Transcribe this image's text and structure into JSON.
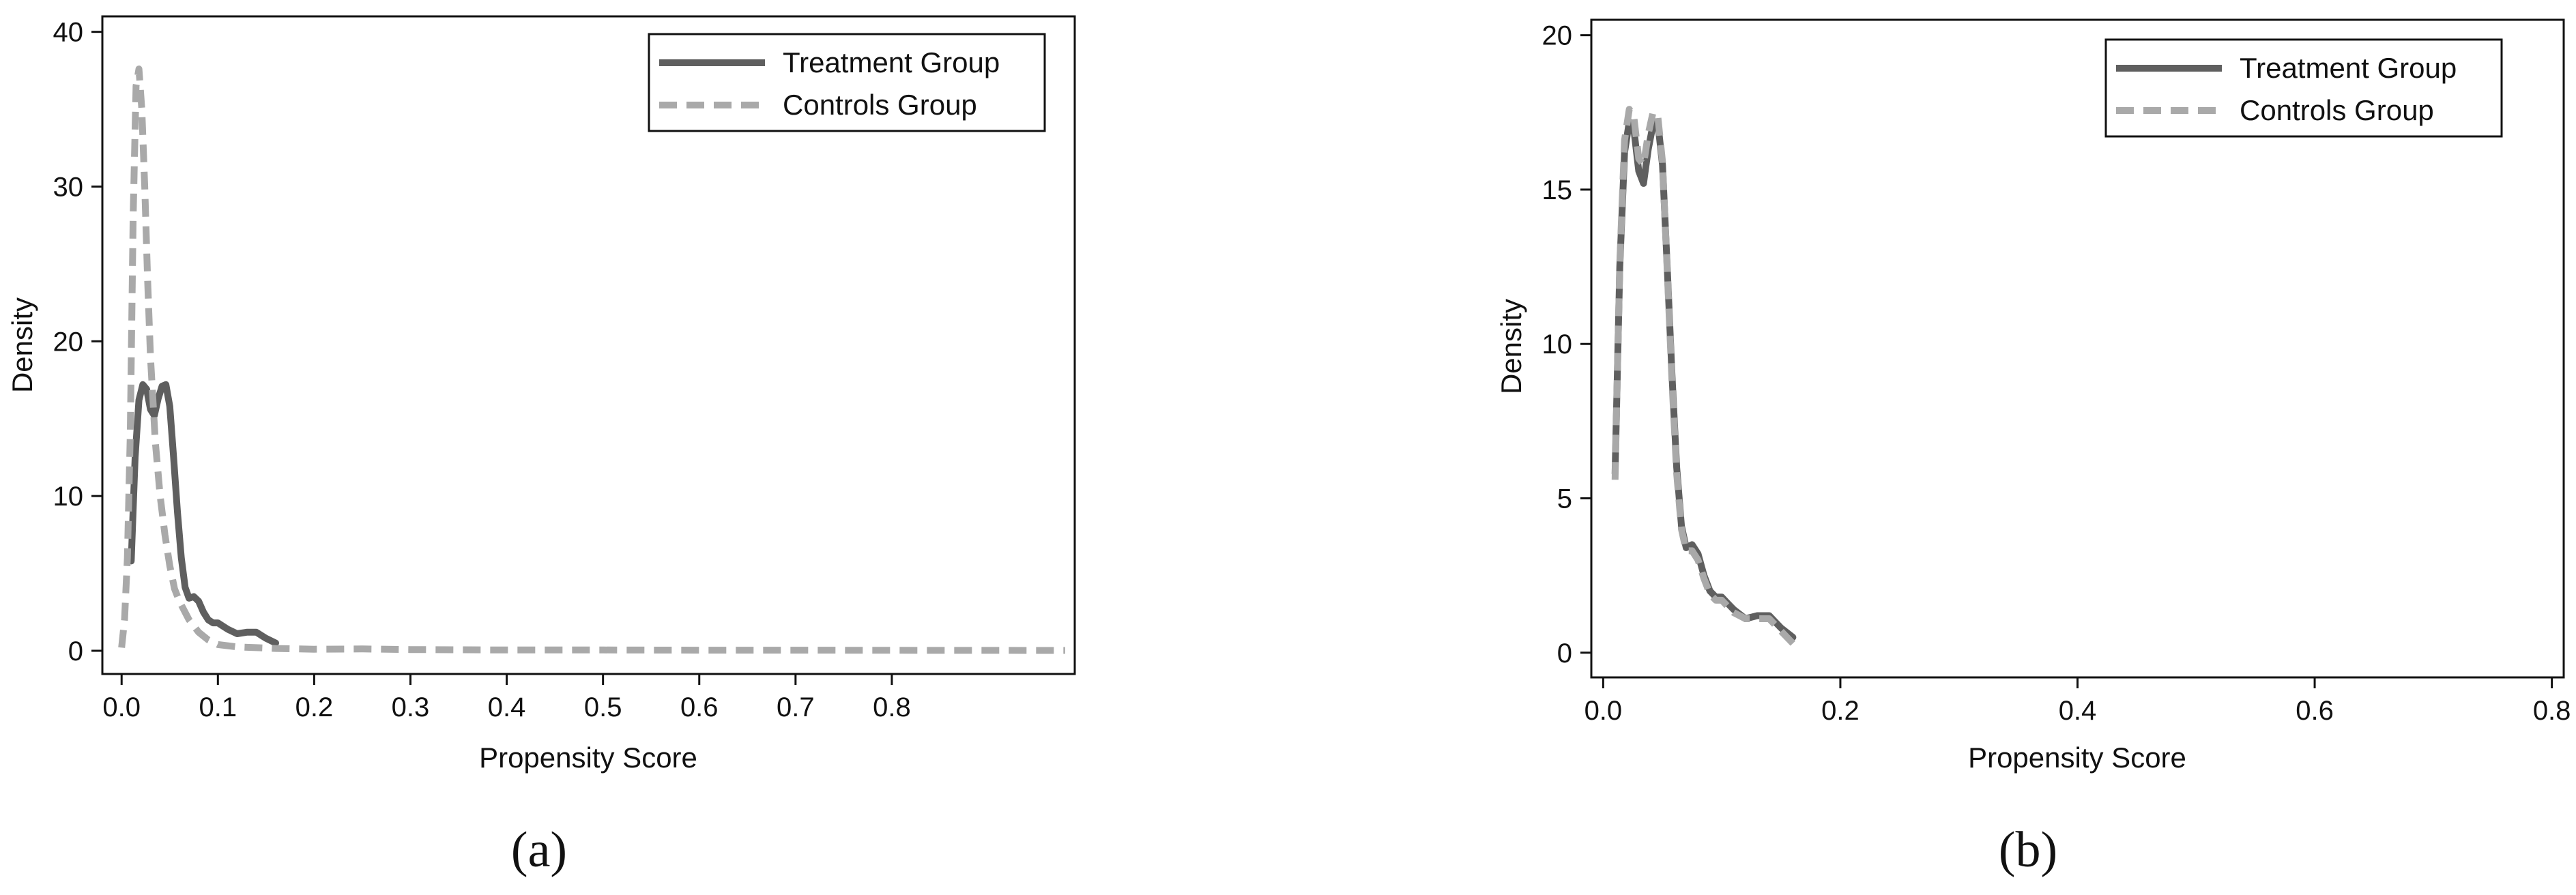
{
  "chart_data": [
    {
      "type": "line",
      "panel_label": "(a)",
      "xlabel": "Propensity Score",
      "ylabel": "Density",
      "xlim": [
        -0.02,
        0.99
      ],
      "ylim": [
        -1.5,
        41
      ],
      "xticks": [
        0.0,
        0.1,
        0.2,
        0.3,
        0.4,
        0.5,
        0.6,
        0.7,
        0.8
      ],
      "xtick_labels": [
        "0.0",
        "0.1",
        "0.2",
        "0.3",
        "0.4",
        "0.5",
        "0.6",
        "0.7",
        "0.8"
      ],
      "yticks": [
        0,
        10,
        20,
        30,
        40
      ],
      "ytick_labels": [
        "0",
        "10",
        "20",
        "30",
        "40"
      ],
      "grid": false,
      "legend_position": "top-right",
      "series": [
        {
          "name": "Treatment Group",
          "style": "solid",
          "color": "#5f5f5f",
          "x": [
            0.01,
            0.014,
            0.018,
            0.022,
            0.026,
            0.03,
            0.034,
            0.038,
            0.042,
            0.046,
            0.05,
            0.054,
            0.058,
            0.062,
            0.066,
            0.07,
            0.075,
            0.08,
            0.085,
            0.09,
            0.095,
            0.1,
            0.105,
            0.11,
            0.12,
            0.13,
            0.14,
            0.15,
            0.16
          ],
          "y": [
            5.8,
            12.5,
            16.2,
            17.2,
            16.9,
            15.6,
            15.2,
            16.3,
            17.1,
            17.2,
            15.8,
            12.5,
            9.0,
            6.0,
            4.1,
            3.4,
            3.5,
            3.2,
            2.5,
            2.0,
            1.8,
            1.8,
            1.6,
            1.4,
            1.1,
            1.2,
            1.2,
            0.8,
            0.5
          ]
        },
        {
          "name": "Controls Group",
          "style": "dashed",
          "color": "#a9a9a9",
          "x": [
            0.0,
            0.003,
            0.006,
            0.009,
            0.012,
            0.015,
            0.018,
            0.021,
            0.024,
            0.027,
            0.03,
            0.035,
            0.04,
            0.045,
            0.05,
            0.055,
            0.06,
            0.07,
            0.08,
            0.09,
            0.1,
            0.12,
            0.14,
            0.16,
            0.2,
            0.25,
            0.3,
            0.4,
            0.5,
            0.6,
            0.7,
            0.8,
            0.98
          ],
          "y": [
            0.2,
            2.0,
            6.0,
            14.0,
            28.0,
            36.5,
            37.6,
            35.0,
            30.0,
            24.0,
            19.0,
            13.5,
            10.0,
            7.5,
            5.5,
            4.0,
            3.2,
            2.0,
            1.2,
            0.7,
            0.4,
            0.25,
            0.2,
            0.15,
            0.1,
            0.12,
            0.08,
            0.05,
            0.05,
            0.04,
            0.04,
            0.03,
            0.02
          ]
        }
      ]
    },
    {
      "type": "line",
      "panel_label": "(b)",
      "xlabel": "Propensity Score",
      "ylabel": "Density",
      "xlim": [
        -0.01,
        0.81
      ],
      "ylim": [
        -0.8,
        20.5
      ],
      "xticks": [
        0.0,
        0.2,
        0.4,
        0.6,
        0.8
      ],
      "xtick_labels": [
        "0.0",
        "0.2",
        "0.4",
        "0.6",
        "0.8"
      ],
      "yticks": [
        0,
        5,
        10,
        15,
        20
      ],
      "ytick_labels": [
        "0",
        "5",
        "10",
        "15",
        "20"
      ],
      "grid": false,
      "legend_position": "top-right",
      "series": [
        {
          "name": "Treatment Group",
          "style": "solid",
          "color": "#5f5f5f",
          "x": [
            0.01,
            0.014,
            0.018,
            0.022,
            0.026,
            0.03,
            0.034,
            0.038,
            0.042,
            0.046,
            0.05,
            0.054,
            0.058,
            0.062,
            0.066,
            0.07,
            0.075,
            0.08,
            0.085,
            0.09,
            0.095,
            0.1,
            0.105,
            0.11,
            0.12,
            0.13,
            0.14,
            0.15,
            0.16
          ],
          "y": [
            5.8,
            12.5,
            16.2,
            17.2,
            16.9,
            15.6,
            15.2,
            16.3,
            17.1,
            17.2,
            15.8,
            12.5,
            9.0,
            6.0,
            4.1,
            3.4,
            3.5,
            3.2,
            2.5,
            2.0,
            1.8,
            1.8,
            1.6,
            1.4,
            1.1,
            1.2,
            1.2,
            0.8,
            0.5
          ]
        },
        {
          "name": "Controls Group",
          "style": "dashed",
          "color": "#a9a9a9",
          "x": [
            0.01,
            0.014,
            0.018,
            0.022,
            0.026,
            0.03,
            0.034,
            0.038,
            0.042,
            0.046,
            0.05,
            0.054,
            0.058,
            0.062,
            0.066,
            0.07,
            0.075,
            0.08,
            0.085,
            0.09,
            0.095,
            0.1,
            0.105,
            0.11,
            0.12,
            0.13,
            0.14,
            0.15,
            0.16
          ],
          "y": [
            5.6,
            12.6,
            16.6,
            17.6,
            17.3,
            16.0,
            15.8,
            16.8,
            17.5,
            17.4,
            15.9,
            12.4,
            8.8,
            5.8,
            4.0,
            3.3,
            3.3,
            3.0,
            2.4,
            1.9,
            1.7,
            1.7,
            1.5,
            1.3,
            1.1,
            1.1,
            1.1,
            0.7,
            0.3
          ]
        }
      ]
    }
  ]
}
